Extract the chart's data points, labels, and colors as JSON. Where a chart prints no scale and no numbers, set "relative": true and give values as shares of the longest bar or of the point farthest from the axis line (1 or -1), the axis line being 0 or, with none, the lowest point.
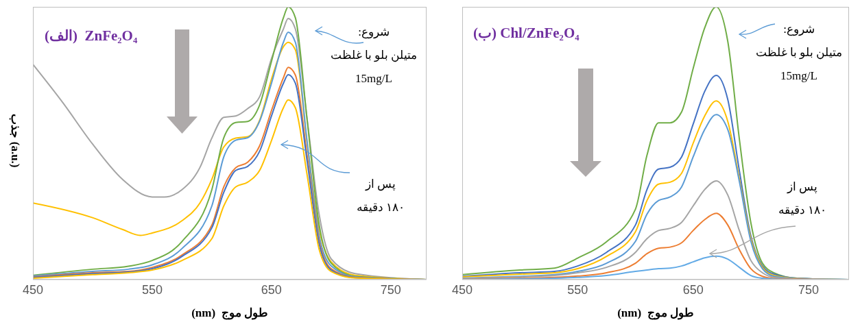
{
  "chart_data": [
    {
      "type": "line",
      "title": "(الف)  ZnFe₂O₄",
      "xlabel": "طول موج  (nm)",
      "ylabel": "جذب (a.u.)",
      "relative": true,
      "marker": "none",
      "xlim": [
        450,
        780
      ],
      "xticks": [
        450,
        550,
        650,
        750
      ],
      "annotations": [
        "شروع:\nمتیلن بلو با غلظت\n15mg/L",
        "پس از\n۱۸۰ دقیقه"
      ],
      "x": [
        450,
        500,
        530,
        550,
        575,
        600,
        610,
        620,
        630,
        640,
        650,
        660,
        664,
        670,
        680,
        690,
        700,
        720,
        780
      ],
      "series": [
        {
          "color": "#a5a5a5",
          "x": [
            450,
            475,
            500,
            525,
            550,
            560,
            575,
            590,
            600,
            610,
            620,
            630,
            640,
            650,
            660,
            664,
            670,
            680,
            690,
            700,
            720,
            780
          ],
          "values": [
            0.789,
            0.649,
            0.497,
            0.368,
            0.303,
            0.303,
            0.33,
            0.411,
            0.519,
            0.595,
            0.6,
            0.627,
            0.67,
            0.811,
            0.919,
            0.957,
            0.919,
            0.584,
            0.238,
            0.076,
            0.022,
            0
          ]
        },
        {
          "color": "#ffc000",
          "x": [
            450,
            500,
            525,
            540,
            550,
            575,
            590,
            600,
            610,
            620,
            630,
            640,
            650,
            660,
            664,
            670,
            680,
            690,
            700,
            720,
            780
          ],
          "values": [
            0.281,
            0.227,
            0.184,
            0.162,
            0.171,
            0.216,
            0.281,
            0.368,
            0.486,
            0.519,
            0.524,
            0.584,
            0.735,
            0.854,
            0.87,
            0.843,
            0.497,
            0.184,
            0.065,
            0.016,
            0
          ]
        },
        {
          "color": "#70ad47",
          "values": [
            0.016,
            0.038,
            0.049,
            0.07,
            0.14,
            0.33,
            0.52,
            0.576,
            0.58,
            0.64,
            0.8,
            0.96,
            1,
            0.96,
            0.58,
            0.2,
            0.06,
            0.012,
            0
          ]
        },
        {
          "color": "#5b9bd5",
          "values": [
            0.013,
            0.03,
            0.038,
            0.054,
            0.114,
            0.27,
            0.45,
            0.511,
            0.52,
            0.58,
            0.72,
            0.87,
            0.907,
            0.87,
            0.5,
            0.16,
            0.05,
            0.01,
            0
          ]
        },
        {
          "color": "#ed7d31",
          "values": [
            0.01,
            0.025,
            0.03,
            0.045,
            0.09,
            0.2,
            0.34,
            0.41,
            0.43,
            0.49,
            0.62,
            0.74,
            0.778,
            0.75,
            0.45,
            0.14,
            0.04,
            0.008,
            0
          ]
        },
        {
          "color": "#4472c4",
          "values": [
            0.008,
            0.022,
            0.028,
            0.04,
            0.085,
            0.19,
            0.32,
            0.4,
            0.415,
            0.47,
            0.6,
            0.72,
            0.751,
            0.72,
            0.43,
            0.13,
            0.035,
            0.007,
            0
          ]
        },
        {
          "color": "#ffc000",
          "values": [
            0.005,
            0.018,
            0.025,
            0.035,
            0.07,
            0.15,
            0.27,
            0.34,
            0.357,
            0.4,
            0.51,
            0.63,
            0.659,
            0.63,
            0.38,
            0.11,
            0.03,
            0.006,
            0
          ]
        }
      ]
    },
    {
      "type": "line",
      "title": "(ب) Chl/ZnFe₂O₄",
      "xlabel": "طول موج  (nm)",
      "relative": true,
      "marker": "none",
      "xlim": [
        450,
        785
      ],
      "xticks": [
        450,
        550,
        650,
        750
      ],
      "annotations": [
        "شروع:\nمتیلن بلو با غلظت\n15mg/L",
        "پس از\n۱۸۰ دقیقه"
      ],
      "x": [
        450,
        500,
        530,
        550,
        575,
        600,
        610,
        620,
        630,
        640,
        650,
        660,
        670,
        680,
        690,
        700,
        710,
        720,
        740,
        785
      ],
      "series": [
        {
          "color": "#70ad47",
          "values": [
            0.018,
            0.035,
            0.042,
            0.079,
            0.139,
            0.258,
            0.456,
            0.575,
            0.575,
            0.615,
            0.774,
            0.923,
            1,
            0.873,
            0.516,
            0.208,
            0.06,
            0.025,
            0.005,
            0
          ]
        },
        {
          "color": "#4472c4",
          "values": [
            0.012,
            0.025,
            0.03,
            0.05,
            0.1,
            0.2,
            0.33,
            0.405,
            0.412,
            0.45,
            0.57,
            0.69,
            0.749,
            0.66,
            0.4,
            0.16,
            0.05,
            0.02,
            0.005,
            0
          ]
        },
        {
          "color": "#ffc000",
          "values": [
            0.01,
            0.02,
            0.025,
            0.04,
            0.085,
            0.175,
            0.29,
            0.35,
            0.357,
            0.39,
            0.5,
            0.6,
            0.655,
            0.58,
            0.37,
            0.15,
            0.045,
            0.015,
            0.004,
            0
          ]
        },
        {
          "color": "#5b9bd5",
          "values": [
            0.005,
            0.012,
            0.018,
            0.03,
            0.06,
            0.14,
            0.24,
            0.29,
            0.303,
            0.34,
            0.45,
            0.55,
            0.605,
            0.55,
            0.36,
            0.14,
            0.04,
            0.012,
            0.003,
            0
          ]
        },
        {
          "color": "#a5a5a5",
          "values": [
            0.004,
            0.01,
            0.015,
            0.025,
            0.045,
            0.1,
            0.15,
            0.18,
            0.188,
            0.21,
            0.27,
            0.33,
            0.362,
            0.31,
            0.18,
            0.07,
            0.025,
            0.008,
            0.002,
            0
          ]
        },
        {
          "color": "#ed7d31",
          "values": [
            0.002,
            0.005,
            0.008,
            0.013,
            0.025,
            0.06,
            0.095,
            0.115,
            0.119,
            0.135,
            0.18,
            0.22,
            0.243,
            0.2,
            0.11,
            0.04,
            0.012,
            0.004,
            0.001,
            0
          ]
        },
        {
          "color": "#62aae6",
          "values": [
            0.001,
            0.003,
            0.005,
            0.008,
            0.015,
            0.03,
            0.035,
            0.04,
            0.042,
            0.05,
            0.065,
            0.08,
            0.086,
            0.075,
            0.045,
            0.015,
            0.005,
            0.002,
            0,
            0
          ]
        }
      ]
    }
  ]
}
